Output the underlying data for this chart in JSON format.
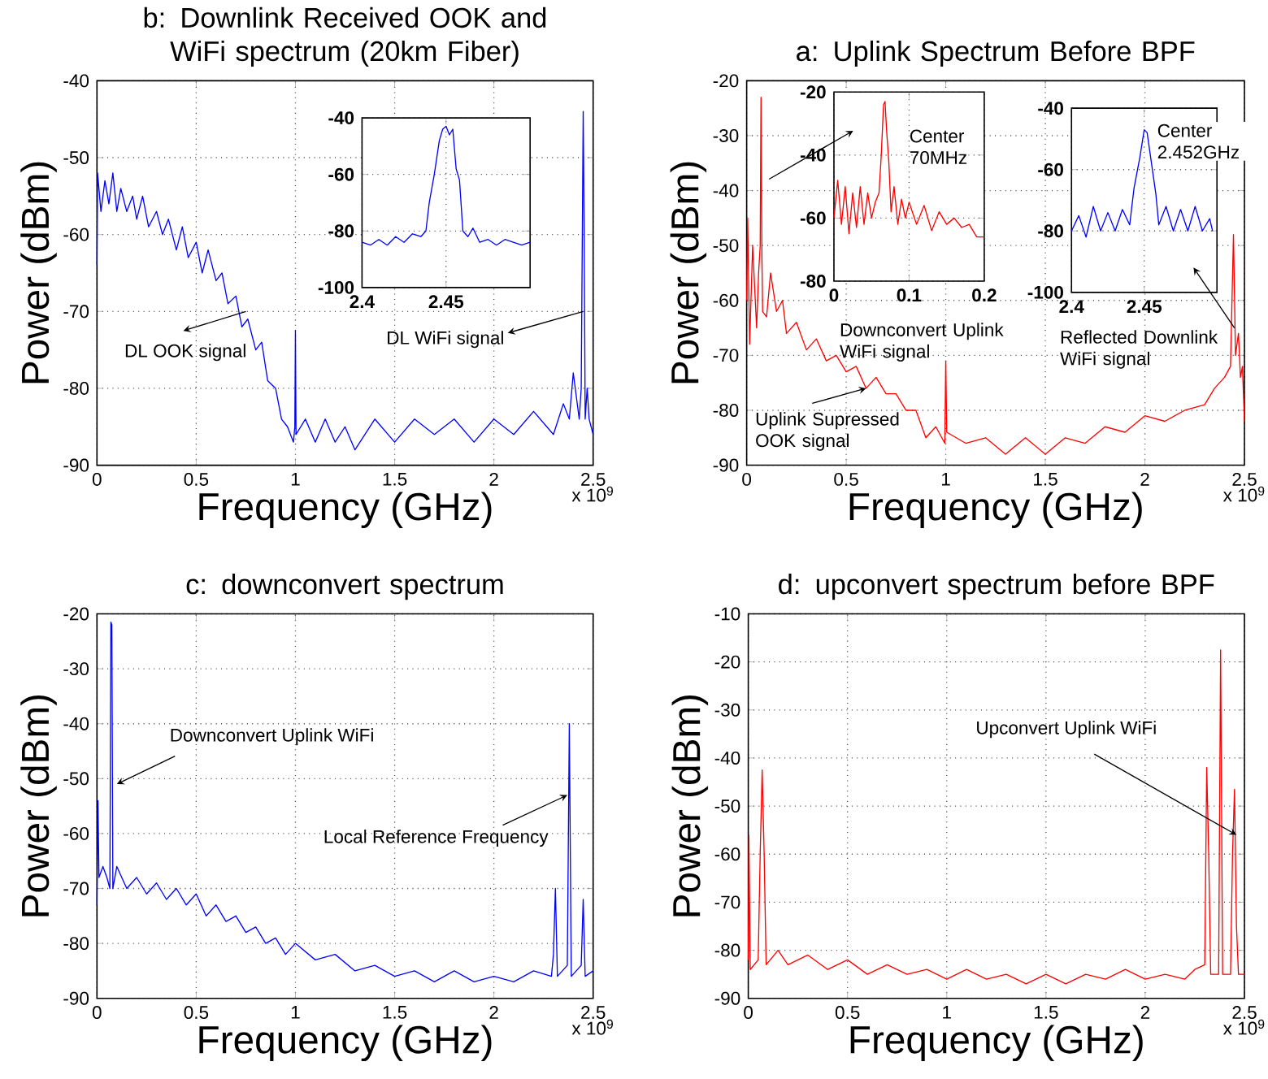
{
  "chart_data": [
    {
      "type": "line",
      "title": "b: Downlink Received OOK and WiFi spectrum (20km Fiber)",
      "xlabel": "Frequency (GHz)",
      "ylabel": "Power (dBm)",
      "color": "#0000ff",
      "grid": true,
      "xlim": [
        0,
        2.5
      ],
      "ylim": [
        -90,
        -40
      ],
      "xticks": [
        0,
        0.5,
        1,
        1.5,
        2,
        2.5
      ],
      "yticks": [
        -90,
        -80,
        -70,
        -60,
        -50,
        -40
      ],
      "x": [
        0,
        0.003,
        0.02,
        0.04,
        0.06,
        0.08,
        0.1,
        0.12,
        0.15,
        0.18,
        0.2,
        0.23,
        0.26,
        0.3,
        0.33,
        0.36,
        0.4,
        0.43,
        0.46,
        0.5,
        0.53,
        0.56,
        0.6,
        0.63,
        0.66,
        0.7,
        0.73,
        0.76,
        0.8,
        0.83,
        0.86,
        0.9,
        0.93,
        0.96,
        0.99,
        0.997,
        1.0,
        1.003,
        1.05,
        1.1,
        1.15,
        1.2,
        1.25,
        1.3,
        1.4,
        1.5,
        1.6,
        1.7,
        1.8,
        1.9,
        2.0,
        2.1,
        2.2,
        2.3,
        2.35,
        2.38,
        2.4,
        2.43,
        2.44,
        2.45,
        2.455,
        2.46,
        2.47,
        2.48,
        2.5
      ],
      "values": [
        -64,
        -52,
        -57,
        -53,
        -56,
        -52,
        -57,
        -54,
        -57,
        -55,
        -58,
        -55,
        -59,
        -57,
        -60,
        -58,
        -62,
        -59,
        -63,
        -61,
        -65,
        -62,
        -66,
        -65,
        -69,
        -68,
        -72,
        -71,
        -75,
        -74,
        -79,
        -80,
        -84,
        -85,
        -87,
        -85,
        -72.5,
        -86,
        -84,
        -87,
        -84,
        -87,
        -85,
        -88,
        -84,
        -87,
        -84,
        -86,
        -84,
        -87,
        -84,
        -86,
        -83,
        -86,
        -82,
        -84,
        -78,
        -84,
        -80,
        -44,
        -60,
        -84,
        -80,
        -84,
        -86
      ],
      "annotations": [
        {
          "text": "DL OOK signal",
          "x": 0.75,
          "y": -70
        },
        {
          "text": "DL WiFi signal",
          "x": 2.45,
          "y": -70
        },
        "x 10$^{9}$"
      ]
    },
    {
      "type": "line",
      "color": "#0000ff",
      "grid": true,
      "xlim": [
        2.4,
        2.5
      ],
      "ylim": [
        -100,
        -40
      ],
      "xticks": [
        2.4,
        2.45
      ],
      "yticks": [
        -100,
        -80,
        -60,
        -40
      ],
      "x": [
        2.4,
        2.405,
        2.41,
        2.415,
        2.42,
        2.425,
        2.43,
        2.435,
        2.438,
        2.44,
        2.443,
        2.446,
        2.448,
        2.45,
        2.452,
        2.454,
        2.456,
        2.458,
        2.46,
        2.463,
        2.466,
        2.47,
        2.475,
        2.48,
        2.485,
        2.49,
        2.495,
        2.5
      ],
      "values": [
        -84,
        -85,
        -83,
        -85,
        -82,
        -84,
        -81,
        -82,
        -80,
        -70,
        -60,
        -48,
        -44,
        -43,
        -46,
        -44,
        -58,
        -62,
        -80,
        -82,
        -79,
        -84,
        -83,
        -85,
        -83,
        -84,
        -85,
        -84
      ]
    },
    {
      "type": "line",
      "title": "a: Uplink Spectrum Before BPF",
      "xlabel": "Frequency (GHz)",
      "ylabel": "Power (dBm)",
      "color": "#ff0000",
      "grid": true,
      "xlim": [
        0,
        2.5
      ],
      "ylim": [
        -90,
        -20
      ],
      "xticks": [
        0,
        0.5,
        1,
        1.5,
        2,
        2.5
      ],
      "yticks": [
        -90,
        -80,
        -70,
        -60,
        -50,
        -40,
        -30,
        -20
      ],
      "x": [
        0,
        0.005,
        0.015,
        0.03,
        0.05,
        0.06,
        0.068,
        0.072,
        0.076,
        0.08,
        0.1,
        0.12,
        0.15,
        0.18,
        0.2,
        0.25,
        0.3,
        0.35,
        0.4,
        0.45,
        0.5,
        0.55,
        0.6,
        0.65,
        0.7,
        0.75,
        0.8,
        0.85,
        0.9,
        0.95,
        0.995,
        1.0,
        1.005,
        1.1,
        1.2,
        1.3,
        1.4,
        1.5,
        1.6,
        1.7,
        1.8,
        1.9,
        2.0,
        2.1,
        2.2,
        2.3,
        2.35,
        2.4,
        2.43,
        2.445,
        2.455,
        2.47,
        2.48,
        2.49,
        2.5
      ],
      "values": [
        -60,
        -45,
        -68,
        -50,
        -65,
        -55,
        -50,
        -23,
        -50,
        -62,
        -63,
        -55,
        -62,
        -60,
        -66,
        -64,
        -69,
        -67,
        -71,
        -70,
        -73,
        -72,
        -76,
        -74,
        -77,
        -77,
        -80,
        -80,
        -85,
        -83,
        -86,
        -71,
        -84,
        -86,
        -85,
        -88,
        -85,
        -88,
        -85,
        -86,
        -83,
        -84,
        -81,
        -82,
        -80,
        -79,
        -76,
        -74,
        -72,
        -48,
        -70,
        -66,
        -74,
        -72,
        -82
      ],
      "annotations": [
        "Downconvert Uplink WiFi signal",
        {
          "text": "Uplink Supressed OOK signal",
          "x": 0.6,
          "y": -76
        },
        {
          "text": "Reflected Downlink WiFi signal",
          "x": 2.45,
          "y": -65
        },
        "x 10$^{9}$"
      ]
    },
    {
      "type": "line",
      "color": "#ff0000",
      "grid": true,
      "xlim": [
        0,
        0.2
      ],
      "ylim": [
        -80,
        -20
      ],
      "xticks": [
        0,
        0.1,
        0.2
      ],
      "yticks": [
        -80,
        -60,
        -40,
        -20
      ],
      "x": [
        0,
        0.005,
        0.01,
        0.015,
        0.02,
        0.025,
        0.03,
        0.035,
        0.04,
        0.045,
        0.05,
        0.055,
        0.06,
        0.063,
        0.066,
        0.068,
        0.07,
        0.073,
        0.076,
        0.08,
        0.085,
        0.09,
        0.095,
        0.1,
        0.11,
        0.12,
        0.13,
        0.14,
        0.15,
        0.16,
        0.17,
        0.18,
        0.19,
        0.2
      ],
      "values": [
        -60,
        -48,
        -62,
        -50,
        -65,
        -52,
        -63,
        -50,
        -62,
        -52,
        -60,
        -55,
        -52,
        -40,
        -24,
        -23,
        -32,
        -42,
        -58,
        -50,
        -62,
        -54,
        -60,
        -55,
        -62,
        -56,
        -64,
        -58,
        -62,
        -60,
        -63,
        -62,
        -66,
        -66
      ],
      "annotations": [
        "Center 70MHz"
      ]
    },
    {
      "type": "line",
      "color": "#0000ff",
      "grid": true,
      "xlim": [
        2.4,
        2.5
      ],
      "ylim": [
        -100,
        -40
      ],
      "xticks": [
        2.4,
        2.45
      ],
      "yticks": [
        -100,
        -80,
        -60,
        -40
      ],
      "x": [
        2.4,
        2.405,
        2.41,
        2.415,
        2.42,
        2.425,
        2.43,
        2.435,
        2.44,
        2.443,
        2.447,
        2.45,
        2.452,
        2.455,
        2.458,
        2.46,
        2.465,
        2.47,
        2.475,
        2.48,
        2.485,
        2.49,
        2.495,
        2.497
      ],
      "values": [
        -80,
        -75,
        -82,
        -72,
        -80,
        -74,
        -80,
        -73,
        -78,
        -66,
        -56,
        -47,
        -48,
        -58,
        -68,
        -78,
        -72,
        -80,
        -73,
        -80,
        -72,
        -80,
        -76,
        -80
      ],
      "annotations": [
        "Center 2.452GHz"
      ]
    },
    {
      "type": "line",
      "title": "c: downconvert spectrum",
      "xlabel": "Frequency (GHz)",
      "ylabel": "Power (dBm)",
      "color": "#0000ff",
      "grid": true,
      "xlim": [
        0,
        2.5
      ],
      "ylim": [
        -90,
        -20
      ],
      "xticks": [
        0,
        0.5,
        1,
        1.5,
        2,
        2.5
      ],
      "yticks": [
        -90,
        -80,
        -70,
        -60,
        -50,
        -40,
        -30,
        -20
      ],
      "x": [
        0,
        0.005,
        0.01,
        0.03,
        0.05,
        0.065,
        0.07,
        0.075,
        0.08,
        0.1,
        0.15,
        0.2,
        0.25,
        0.3,
        0.35,
        0.4,
        0.45,
        0.5,
        0.55,
        0.6,
        0.65,
        0.7,
        0.75,
        0.8,
        0.85,
        0.9,
        0.95,
        1.0,
        1.1,
        1.2,
        1.3,
        1.4,
        1.5,
        1.6,
        1.7,
        1.8,
        1.9,
        2.0,
        2.1,
        2.2,
        2.29,
        2.3,
        2.31,
        2.32,
        2.37,
        2.38,
        2.39,
        2.44,
        2.45,
        2.46,
        2.5
      ],
      "values": [
        -73,
        -54,
        -68,
        -66,
        -68,
        -70,
        -21.5,
        -22,
        -70,
        -66,
        -70,
        -68,
        -71,
        -69,
        -72,
        -70,
        -73,
        -71,
        -75,
        -73,
        -76,
        -75,
        -78,
        -77,
        -80,
        -79,
        -82,
        -80,
        -83,
        -82,
        -85,
        -84,
        -86,
        -85,
        -87,
        -85,
        -87,
        -86,
        -87,
        -85,
        -86,
        -82,
        -70,
        -86,
        -84,
        -40,
        -86,
        -84,
        -72,
        -86,
        -85
      ],
      "annotations": [
        {
          "text": "Downconvert Uplink WiFi",
          "x": 0.1,
          "y": -51
        },
        {
          "text": "Local Reference Frequency",
          "x": 2.37,
          "y": -53
        },
        "x 10$^{9}$"
      ]
    },
    {
      "type": "line",
      "title": "d: upconvert spectrum before BPF",
      "xlabel": "Frequency (GHz)",
      "ylabel": "Power (dBm)",
      "color": "#ff0000",
      "grid": true,
      "xlim": [
        0,
        2.5
      ],
      "ylim": [
        -90,
        -10
      ],
      "xticks": [
        0,
        0.5,
        1,
        1.5,
        2,
        2.5
      ],
      "yticks": [
        -90,
        -80,
        -70,
        -60,
        -50,
        -40,
        -30,
        -20,
        -10
      ],
      "x": [
        0,
        0.003,
        0.01,
        0.05,
        0.06,
        0.07,
        0.08,
        0.09,
        0.15,
        0.2,
        0.3,
        0.4,
        0.5,
        0.6,
        0.7,
        0.8,
        0.9,
        1.0,
        1.1,
        1.2,
        1.3,
        1.4,
        1.5,
        1.6,
        1.7,
        1.8,
        1.9,
        2.0,
        2.1,
        2.2,
        2.25,
        2.3,
        2.31,
        2.32,
        2.33,
        2.37,
        2.38,
        2.39,
        2.43,
        2.44,
        2.45,
        2.46,
        2.47,
        2.5
      ],
      "values": [
        -82,
        -56,
        -84,
        -82,
        -60,
        -42.5,
        -60,
        -83,
        -80,
        -83,
        -81,
        -84,
        -82,
        -85,
        -83,
        -85,
        -84,
        -86,
        -84,
        -86,
        -85,
        -87,
        -85,
        -87,
        -85,
        -86,
        -84,
        -86,
        -85,
        -86,
        -84,
        -83,
        -42,
        -60,
        -85,
        -85,
        -17.5,
        -85,
        -85,
        -60,
        -46.5,
        -75,
        -85,
        -85
      ],
      "annotations": [
        {
          "text": "Upconvert Uplink WiFi",
          "x": 2.46,
          "y": -56
        },
        "x 10$^{9}$"
      ]
    }
  ]
}
